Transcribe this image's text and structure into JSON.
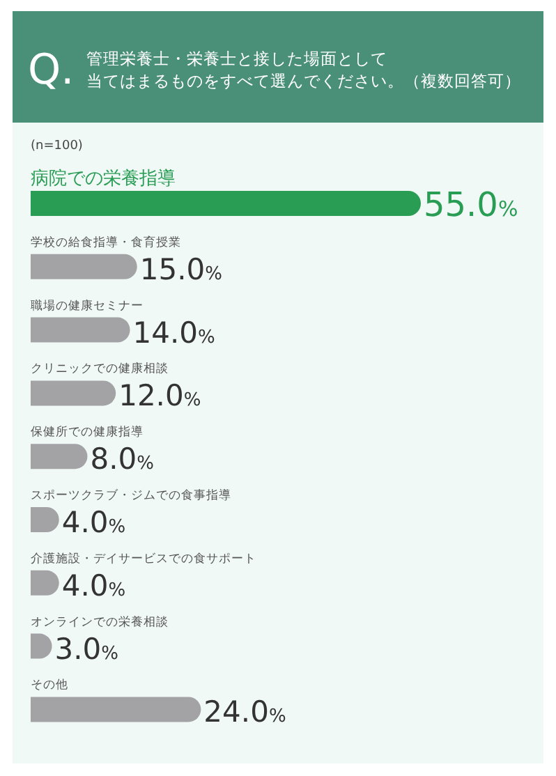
{
  "chart_data": {
    "type": "bar",
    "orientation": "horizontal",
    "title": "Q. 管理栄養士・栄養士と接した場面として当てはまるものをすべて選んでください。（複数回答可）",
    "annotations": [
      "(n=100)"
    ],
    "categories": [
      "病院での栄養指導",
      "学校の給食指導・食育授業",
      "職場の健康セミナー",
      "クリニックでの健康相談",
      "保健所での健康指導",
      "スポーツクラブ・ジムでの食事指導",
      "介護施設・デイサービスでの食サポート",
      "オンラインでの栄養相談",
      "その他"
    ],
    "values": [
      55.0,
      15.0,
      14.0,
      12.0,
      8.0,
      4.0,
      4.0,
      3.0,
      24.0
    ],
    "colors": [
      "#2a9d55",
      "#a3a3a5",
      "#a3a3a5",
      "#a3a3a5",
      "#a3a3a5",
      "#a3a3a5",
      "#a3a3a5",
      "#a3a3a5",
      "#a3a3a5"
    ],
    "value_labels": [
      "55.0%",
      "15.0%",
      "14.0%",
      "12.0%",
      "8.0%",
      "4.0%",
      "4.0%",
      "3.0%",
      "24.0%"
    ]
  }
}
